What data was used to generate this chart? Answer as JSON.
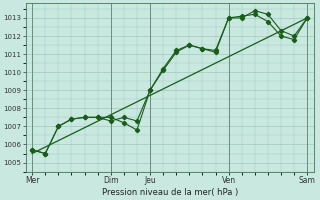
{
  "background_color": "#c8e8e0",
  "plot_bg_color": "#c8e8e0",
  "grid_color": "#a0c8c0",
  "line_color": "#1a5c1a",
  "title": "Pression niveau de la mer( hPa )",
  "ylim": [
    1004.5,
    1013.8
  ],
  "yticks": [
    1005,
    1006,
    1007,
    1008,
    1009,
    1010,
    1011,
    1012,
    1013
  ],
  "xtick_labels": [
    "Mer",
    "Dim",
    "Jeu",
    "Ven",
    "Sam"
  ],
  "xtick_positions": [
    0,
    6,
    9,
    15,
    21
  ],
  "vlines": [
    0,
    6,
    9,
    15,
    21
  ],
  "line1": [
    1005.7,
    1005.5,
    1007.0,
    1007.4,
    1007.5,
    1007.5,
    1007.5,
    1007.2,
    1006.8,
    1009.0,
    1010.1,
    1011.1,
    1011.5,
    1011.3,
    1011.1,
    1013.0,
    1013.0,
    1013.4,
    1013.2,
    1012.3,
    1012.0,
    1013.0
  ],
  "line2": [
    1005.7,
    1005.5,
    1007.0,
    1007.4,
    1007.5,
    1007.5,
    1007.3,
    1007.5,
    1007.3,
    1009.0,
    1010.2,
    1011.2,
    1011.5,
    1011.3,
    1011.2,
    1013.0,
    1013.1,
    1013.2,
    1012.8,
    1012.0,
    1011.8,
    1013.0
  ],
  "line3_x": [
    0,
    21
  ],
  "line3_y": [
    1005.5,
    1013.0
  ],
  "n_points": 22
}
